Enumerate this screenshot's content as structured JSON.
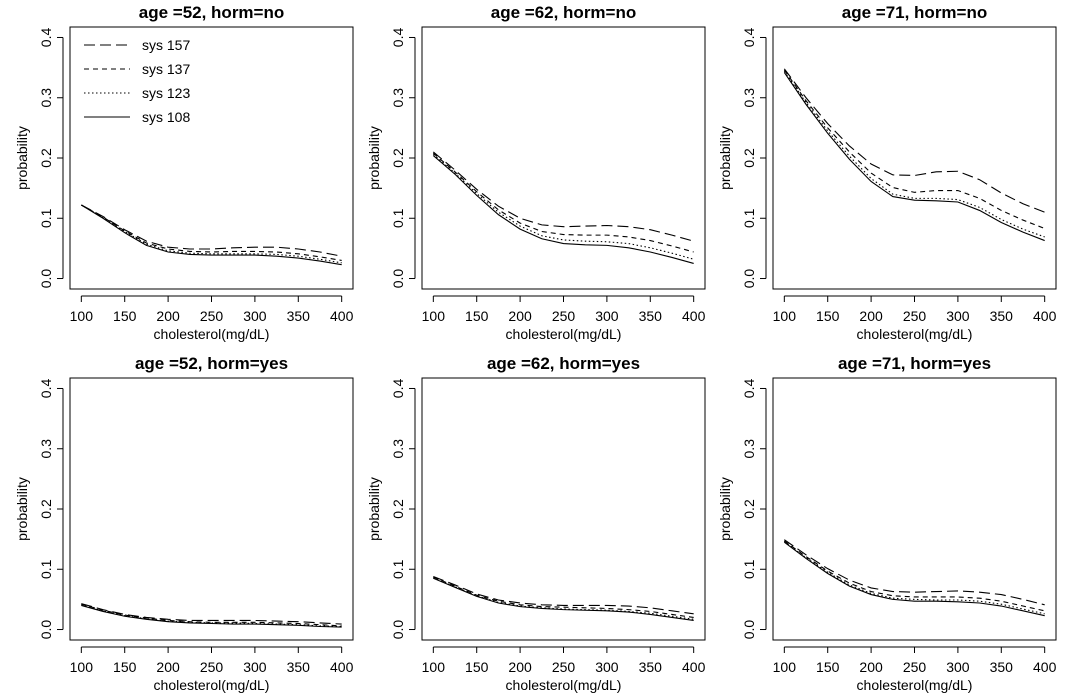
{
  "chart_data": [
    {
      "type": "line",
      "title": "age =52, horm=no",
      "xlabel": "cholesterol(mg/dL)",
      "ylabel": "probability",
      "xlim": [
        100,
        400
      ],
      "ylim": [
        0,
        0.4
      ],
      "xticks": [
        100,
        150,
        200,
        250,
        300,
        350,
        400
      ],
      "yticks": [
        0.0,
        0.1,
        0.2,
        0.3,
        0.4
      ],
      "x": [
        100,
        125,
        150,
        175,
        200,
        225,
        250,
        275,
        300,
        325,
        350,
        375,
        400
      ],
      "series": [
        {
          "name": "sys 157",
          "values": [
            0.122,
            0.103,
            0.081,
            0.062,
            0.052,
            0.049,
            0.049,
            0.051,
            0.052,
            0.052,
            0.049,
            0.044,
            0.037
          ]
        },
        {
          "name": "sys 137",
          "values": [
            0.122,
            0.102,
            0.079,
            0.059,
            0.049,
            0.045,
            0.044,
            0.045,
            0.045,
            0.044,
            0.041,
            0.036,
            0.03
          ]
        },
        {
          "name": "sys 123",
          "values": [
            0.122,
            0.101,
            0.078,
            0.057,
            0.046,
            0.042,
            0.041,
            0.041,
            0.041,
            0.04,
            0.037,
            0.032,
            0.026
          ]
        },
        {
          "name": "sys 108",
          "values": [
            0.122,
            0.1,
            0.076,
            0.055,
            0.044,
            0.04,
            0.039,
            0.039,
            0.039,
            0.037,
            0.034,
            0.029,
            0.023
          ]
        }
      ],
      "legend": "top-left"
    },
    {
      "type": "line",
      "title": "age =62, horm=no",
      "xlabel": "cholesterol(mg/dL)",
      "ylabel": "probability",
      "xlim": [
        100,
        400
      ],
      "ylim": [
        0,
        0.4
      ],
      "xticks": [
        100,
        150,
        200,
        250,
        300,
        350,
        400
      ],
      "yticks": [
        0.0,
        0.1,
        0.2,
        0.3,
        0.4
      ],
      "x": [
        100,
        125,
        150,
        175,
        200,
        225,
        250,
        275,
        300,
        325,
        350,
        375,
        400
      ],
      "series": [
        {
          "name": "sys 157",
          "values": [
            0.21,
            0.18,
            0.148,
            0.12,
            0.1,
            0.089,
            0.086,
            0.087,
            0.088,
            0.086,
            0.081,
            0.072,
            0.062
          ]
        },
        {
          "name": "sys 137",
          "values": [
            0.208,
            0.177,
            0.144,
            0.114,
            0.092,
            0.078,
            0.073,
            0.072,
            0.072,
            0.069,
            0.063,
            0.054,
            0.044
          ]
        },
        {
          "name": "sys 123",
          "values": [
            0.206,
            0.175,
            0.141,
            0.11,
            0.087,
            0.071,
            0.064,
            0.062,
            0.061,
            0.058,
            0.051,
            0.042,
            0.032
          ]
        },
        {
          "name": "sys 108",
          "values": [
            0.204,
            0.173,
            0.138,
            0.106,
            0.082,
            0.066,
            0.058,
            0.056,
            0.055,
            0.051,
            0.044,
            0.035,
            0.025
          ]
        }
      ]
    },
    {
      "type": "line",
      "title": "age =71, horm=no",
      "xlabel": "cholesterol(mg/dL)",
      "ylabel": "probability",
      "xlim": [
        100,
        400
      ],
      "ylim": [
        0,
        0.4
      ],
      "xticks": [
        100,
        150,
        200,
        250,
        300,
        350,
        400
      ],
      "yticks": [
        0.0,
        0.1,
        0.2,
        0.3,
        0.4
      ],
      "x": [
        100,
        125,
        150,
        175,
        200,
        225,
        250,
        275,
        300,
        325,
        350,
        375,
        400
      ],
      "series": [
        {
          "name": "sys 157",
          "values": [
            0.348,
            0.3,
            0.257,
            0.22,
            0.19,
            0.172,
            0.171,
            0.177,
            0.178,
            0.164,
            0.142,
            0.124,
            0.11
          ]
        },
        {
          "name": "sys 137",
          "values": [
            0.346,
            0.295,
            0.25,
            0.21,
            0.175,
            0.151,
            0.143,
            0.146,
            0.146,
            0.133,
            0.113,
            0.097,
            0.083
          ]
        },
        {
          "name": "sys 123",
          "values": [
            0.344,
            0.292,
            0.245,
            0.203,
            0.166,
            0.14,
            0.133,
            0.133,
            0.131,
            0.118,
            0.098,
            0.082,
            0.069
          ]
        },
        {
          "name": "sys 108",
          "values": [
            0.342,
            0.289,
            0.241,
            0.198,
            0.161,
            0.136,
            0.13,
            0.129,
            0.127,
            0.113,
            0.093,
            0.077,
            0.063
          ]
        }
      ]
    },
    {
      "type": "line",
      "title": "age =52, horm=yes",
      "xlabel": "cholesterol(mg/dL)",
      "ylabel": "probability",
      "xlim": [
        100,
        400
      ],
      "ylim": [
        0,
        0.4
      ],
      "xticks": [
        100,
        150,
        200,
        250,
        300,
        350,
        400
      ],
      "yticks": [
        0.0,
        0.1,
        0.2,
        0.3,
        0.4
      ],
      "x": [
        100,
        125,
        150,
        175,
        200,
        225,
        250,
        275,
        300,
        325,
        350,
        375,
        400
      ],
      "series": [
        {
          "name": "sys 157",
          "values": [
            0.043,
            0.033,
            0.025,
            0.02,
            0.017,
            0.015,
            0.015,
            0.015,
            0.015,
            0.014,
            0.013,
            0.011,
            0.009
          ]
        },
        {
          "name": "sys 137",
          "values": [
            0.042,
            0.032,
            0.024,
            0.019,
            0.015,
            0.013,
            0.012,
            0.012,
            0.012,
            0.011,
            0.01,
            0.008,
            0.006
          ]
        },
        {
          "name": "sys 123",
          "values": [
            0.041,
            0.031,
            0.023,
            0.018,
            0.014,
            0.012,
            0.011,
            0.011,
            0.01,
            0.009,
            0.008,
            0.006,
            0.005
          ]
        },
        {
          "name": "sys 108",
          "values": [
            0.04,
            0.03,
            0.022,
            0.017,
            0.013,
            0.011,
            0.01,
            0.009,
            0.009,
            0.008,
            0.007,
            0.005,
            0.004
          ]
        }
      ]
    },
    {
      "type": "line",
      "title": "age =62, horm=yes",
      "xlabel": "cholesterol(mg/dL)",
      "ylabel": "probability",
      "xlim": [
        100,
        400
      ],
      "ylim": [
        0,
        0.4
      ],
      "xticks": [
        100,
        150,
        200,
        250,
        300,
        350,
        400
      ],
      "yticks": [
        0.0,
        0.1,
        0.2,
        0.3,
        0.4
      ],
      "x": [
        100,
        125,
        150,
        175,
        200,
        225,
        250,
        275,
        300,
        325,
        350,
        375,
        400
      ],
      "series": [
        {
          "name": "sys 157",
          "values": [
            0.088,
            0.074,
            0.059,
            0.049,
            0.044,
            0.041,
            0.04,
            0.04,
            0.04,
            0.039,
            0.036,
            0.031,
            0.026
          ]
        },
        {
          "name": "sys 137",
          "values": [
            0.087,
            0.072,
            0.057,
            0.047,
            0.041,
            0.038,
            0.037,
            0.036,
            0.035,
            0.033,
            0.03,
            0.025,
            0.02
          ]
        },
        {
          "name": "sys 123",
          "values": [
            0.086,
            0.071,
            0.056,
            0.045,
            0.039,
            0.036,
            0.034,
            0.033,
            0.032,
            0.03,
            0.027,
            0.022,
            0.017
          ]
        },
        {
          "name": "sys 108",
          "values": [
            0.085,
            0.07,
            0.055,
            0.044,
            0.038,
            0.035,
            0.033,
            0.032,
            0.031,
            0.029,
            0.025,
            0.02,
            0.015
          ]
        }
      ]
    },
    {
      "type": "line",
      "title": "age =71, horm=yes",
      "xlabel": "cholesterol(mg/dL)",
      "ylabel": "probability",
      "xlim": [
        100,
        400
      ],
      "ylim": [
        0,
        0.4
      ],
      "xticks": [
        100,
        150,
        200,
        250,
        300,
        350,
        400
      ],
      "yticks": [
        0.0,
        0.1,
        0.2,
        0.3,
        0.4
      ],
      "x": [
        100,
        125,
        150,
        175,
        200,
        225,
        250,
        275,
        300,
        325,
        350,
        375,
        400
      ],
      "series": [
        {
          "name": "sys 157",
          "values": [
            0.149,
            0.124,
            0.101,
            0.082,
            0.069,
            0.063,
            0.062,
            0.063,
            0.064,
            0.062,
            0.058,
            0.05,
            0.041
          ]
        },
        {
          "name": "sys 137",
          "values": [
            0.147,
            0.121,
            0.097,
            0.077,
            0.063,
            0.056,
            0.054,
            0.054,
            0.054,
            0.052,
            0.047,
            0.039,
            0.031
          ]
        },
        {
          "name": "sys 123",
          "values": [
            0.146,
            0.119,
            0.095,
            0.074,
            0.06,
            0.052,
            0.05,
            0.049,
            0.049,
            0.047,
            0.042,
            0.034,
            0.026
          ]
        },
        {
          "name": "sys 108",
          "values": [
            0.145,
            0.118,
            0.093,
            0.072,
            0.058,
            0.05,
            0.047,
            0.047,
            0.046,
            0.044,
            0.039,
            0.031,
            0.023
          ]
        }
      ]
    }
  ]
}
